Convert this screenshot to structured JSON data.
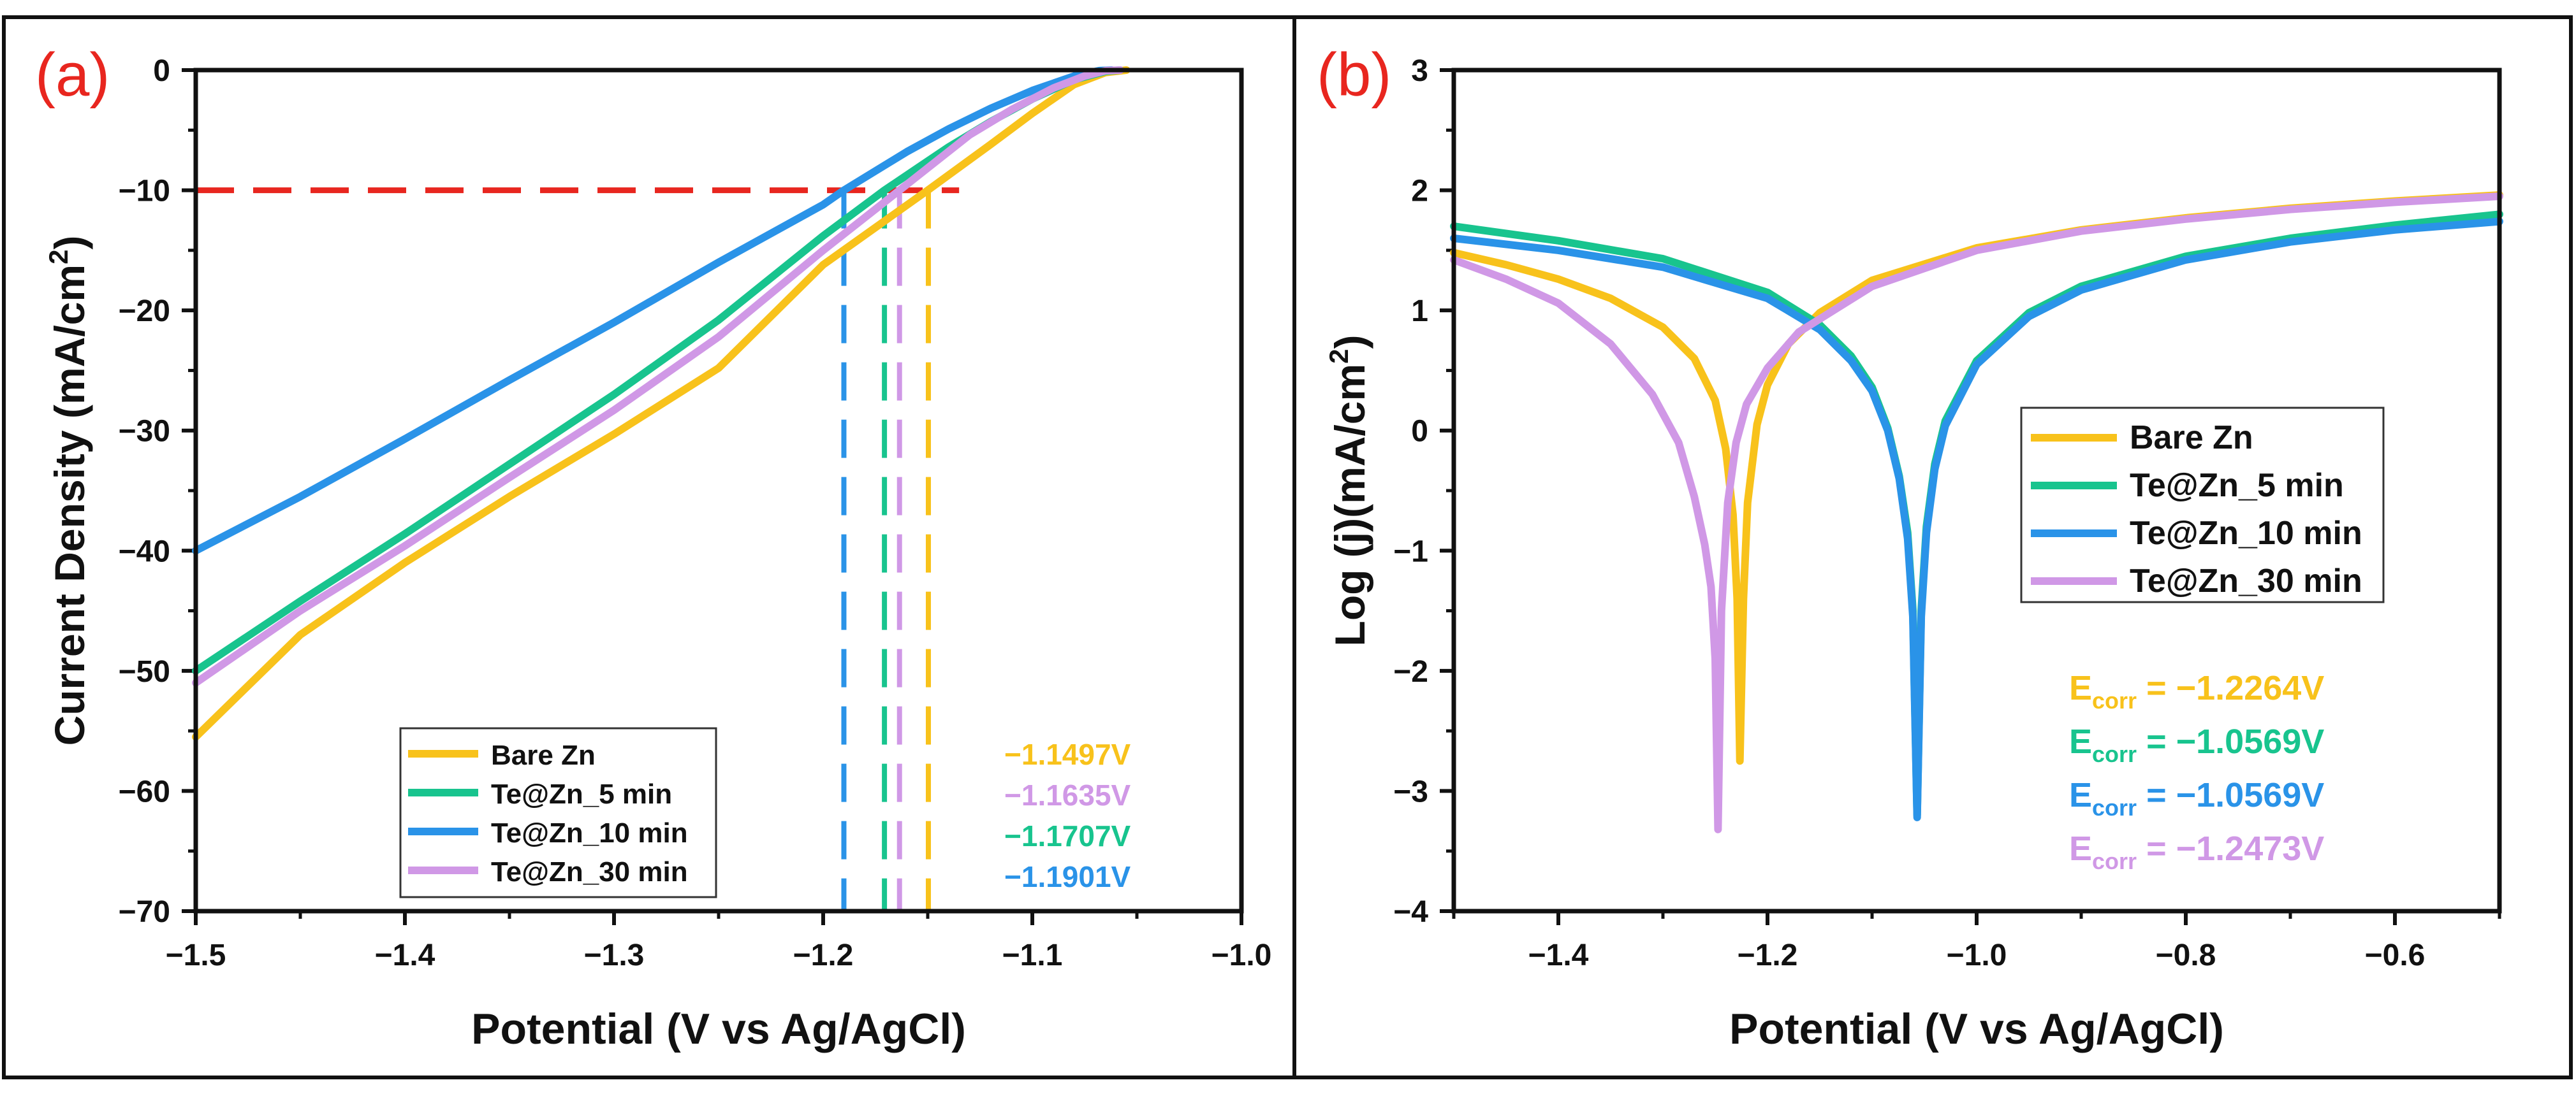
{
  "chart_data": [
    {
      "panel": "(a)",
      "type": "line",
      "xlabel": "Potential (V vs Ag/AgCl)",
      "ylabel": "Current Density (mA/cm²)",
      "ylabel_base": "Current Density (mA/cm",
      "ylabel_sup": "2",
      "ylabel_end": ")",
      "xlim": [
        -1.5,
        -1.0
      ],
      "ylim": [
        -70,
        0
      ],
      "xticks": [
        -1.5,
        -1.4,
        -1.3,
        -1.2,
        -1.1,
        -1.0
      ],
      "xtick_labels": [
        "−1.5",
        "−1.4",
        "−1.3",
        "−1.2",
        "−1.1",
        "−1.0"
      ],
      "yticks": [
        0,
        -10,
        -20,
        -30,
        -40,
        -50,
        -60,
        -70
      ],
      "ytick_labels": [
        "0",
        "−10",
        "−20",
        "−30",
        "−40",
        "−50",
        "−60",
        "−70"
      ],
      "legend_position": "bottom-left",
      "reference_line": {
        "y": -10,
        "color": "#e8261f",
        "style": "dashed"
      },
      "series": [
        {
          "name": "Bare Zn",
          "color": "#f8c21b",
          "x": [
            -1.5,
            -1.45,
            -1.4,
            -1.35,
            -1.3,
            -1.25,
            -1.2,
            -1.15,
            -1.12,
            -1.1,
            -1.08,
            -1.065,
            -1.055
          ],
          "y": [
            -55.5,
            -47,
            -41,
            -35.5,
            -30.3,
            -24.8,
            -16.2,
            -10,
            -6.2,
            -3.6,
            -1.2,
            -0.2,
            0
          ]
        },
        {
          "name": "Te@Zn_5 min",
          "color": "#18c48e",
          "x": [
            -1.5,
            -1.45,
            -1.4,
            -1.35,
            -1.3,
            -1.25,
            -1.2,
            -1.1707,
            -1.14,
            -1.12,
            -1.1,
            -1.08,
            -1.065,
            -1.058
          ],
          "y": [
            -50,
            -44.2,
            -38.6,
            -32.8,
            -27,
            -20.8,
            -13.8,
            -10,
            -6.4,
            -4.3,
            -2.4,
            -0.8,
            -0.1,
            0
          ]
        },
        {
          "name": "Te@Zn_10 min",
          "color": "#2a93e8",
          "x": [
            -1.5,
            -1.45,
            -1.4,
            -1.35,
            -1.3,
            -1.25,
            -1.2,
            -1.1901,
            -1.16,
            -1.14,
            -1.12,
            -1.1,
            -1.08,
            -1.068,
            -1.062
          ],
          "y": [
            -40,
            -35.5,
            -30.7,
            -25.8,
            -21,
            -16,
            -11.2,
            -10,
            -6.8,
            -4.9,
            -3.2,
            -1.7,
            -0.5,
            -0.05,
            0
          ]
        },
        {
          "name": "Te@Zn_30 min",
          "color": "#d098e6",
          "x": [
            -1.5,
            -1.45,
            -1.4,
            -1.35,
            -1.3,
            -1.25,
            -1.2,
            -1.1635,
            -1.13,
            -1.11,
            -1.09,
            -1.075,
            -1.065,
            -1.058
          ],
          "y": [
            -51,
            -45,
            -39.6,
            -33.9,
            -28.3,
            -22.2,
            -15,
            -10,
            -5.4,
            -3.3,
            -1.5,
            -0.5,
            -0.05,
            0
          ]
        }
      ],
      "annotations": [
        {
          "text": "−1.1497V",
          "value": -1.1497,
          "color": "#f8c21b"
        },
        {
          "text": "−1.1635V",
          "value": -1.1635,
          "color": "#d098e6"
        },
        {
          "text": "−1.1707V",
          "value": -1.1707,
          "color": "#18c48e"
        },
        {
          "text": "−1.1901V",
          "value": -1.1901,
          "color": "#2a93e8"
        }
      ]
    },
    {
      "panel": "(b)",
      "type": "line",
      "xlabel": "Potential (V vs Ag/AgCl)",
      "ylabel": "Log (j)(mA/cm²)",
      "ylabel_base": "Log (j)(mA/cm",
      "ylabel_sup": "2",
      "ylabel_end": ")",
      "xlim": [
        -1.5,
        -0.5
      ],
      "ylim": [
        -4,
        3
      ],
      "xticks": [
        -1.4,
        -1.2,
        -1.0,
        -0.8,
        -0.6
      ],
      "xtick_labels": [
        "−1.4",
        "−1.2",
        "−1.0",
        "−0.8",
        "−0.6"
      ],
      "yticks": [
        3,
        2,
        1,
        0,
        -1,
        -2,
        -3,
        -4
      ],
      "ytick_labels": [
        "3",
        "2",
        "1",
        "0",
        "−1",
        "−2",
        "−3",
        "−4"
      ],
      "legend_position": "center-right",
      "series": [
        {
          "name": "Bare Zn",
          "color": "#f8c21b",
          "x": [
            -1.5,
            -1.45,
            -1.4,
            -1.35,
            -1.3,
            -1.27,
            -1.25,
            -1.24,
            -1.233,
            -1.229,
            -1.2264,
            -1.223,
            -1.219,
            -1.21,
            -1.2,
            -1.18,
            -1.15,
            -1.1,
            -1.0,
            -0.9,
            -0.8,
            -0.7,
            -0.6,
            -0.5
          ],
          "y": [
            1.48,
            1.38,
            1.26,
            1.1,
            0.86,
            0.6,
            0.25,
            -0.15,
            -0.7,
            -1.4,
            -2.75,
            -1.4,
            -0.6,
            0.05,
            0.38,
            0.72,
            0.98,
            1.25,
            1.52,
            1.67,
            1.77,
            1.85,
            1.91,
            1.96
          ]
        },
        {
          "name": "Te@Zn_5 min",
          "color": "#18c48e",
          "x": [
            -1.5,
            -1.4,
            -1.3,
            -1.2,
            -1.15,
            -1.12,
            -1.1,
            -1.085,
            -1.074,
            -1.066,
            -1.061,
            -1.0569,
            -1.053,
            -1.048,
            -1.04,
            -1.03,
            -1.0,
            -0.95,
            -0.9,
            -0.8,
            -0.7,
            -0.6,
            -0.5
          ],
          "y": [
            1.7,
            1.58,
            1.43,
            1.15,
            0.88,
            0.62,
            0.36,
            0.02,
            -0.38,
            -0.85,
            -1.5,
            -3.2,
            -1.5,
            -0.8,
            -0.28,
            0.08,
            0.58,
            0.98,
            1.2,
            1.45,
            1.6,
            1.71,
            1.8
          ]
        },
        {
          "name": "Te@Zn_10 min",
          "color": "#2a93e8",
          "x": [
            -1.5,
            -1.4,
            -1.3,
            -1.2,
            -1.15,
            -1.12,
            -1.1,
            -1.085,
            -1.074,
            -1.066,
            -1.061,
            -1.0569,
            -1.053,
            -1.048,
            -1.04,
            -1.03,
            -1.0,
            -0.95,
            -0.9,
            -0.8,
            -0.7,
            -0.6,
            -0.5
          ],
          "y": [
            1.6,
            1.5,
            1.36,
            1.1,
            0.84,
            0.58,
            0.33,
            0.0,
            -0.4,
            -0.9,
            -1.55,
            -3.22,
            -1.55,
            -0.85,
            -0.32,
            0.04,
            0.55,
            0.95,
            1.17,
            1.42,
            1.57,
            1.67,
            1.74
          ]
        },
        {
          "name": "Te@Zn_30 min",
          "color": "#d098e6",
          "x": [
            -1.5,
            -1.45,
            -1.4,
            -1.35,
            -1.31,
            -1.285,
            -1.27,
            -1.26,
            -1.254,
            -1.25,
            -1.2473,
            -1.244,
            -1.238,
            -1.23,
            -1.22,
            -1.2,
            -1.17,
            -1.1,
            -1.0,
            -0.9,
            -0.8,
            -0.7,
            -0.6,
            -0.5
          ],
          "y": [
            1.42,
            1.26,
            1.06,
            0.72,
            0.3,
            -0.1,
            -0.55,
            -0.95,
            -1.3,
            -1.9,
            -3.32,
            -1.5,
            -0.6,
            -0.1,
            0.22,
            0.52,
            0.82,
            1.2,
            1.5,
            1.66,
            1.76,
            1.84,
            1.9,
            1.95
          ]
        }
      ],
      "annotations": [
        {
          "label": "E",
          "sub": "corr",
          "rest": " = −1.2264V",
          "color": "#f8c21b"
        },
        {
          "label": "E",
          "sub": "corr",
          "rest": " = −1.0569V",
          "color": "#18c48e"
        },
        {
          "label": "E",
          "sub": "corr",
          "rest": " = −1.0569V",
          "color": "#2a93e8"
        },
        {
          "label": "E",
          "sub": "corr",
          "rest": " = −1.2473V",
          "color": "#d098e6"
        }
      ]
    }
  ]
}
